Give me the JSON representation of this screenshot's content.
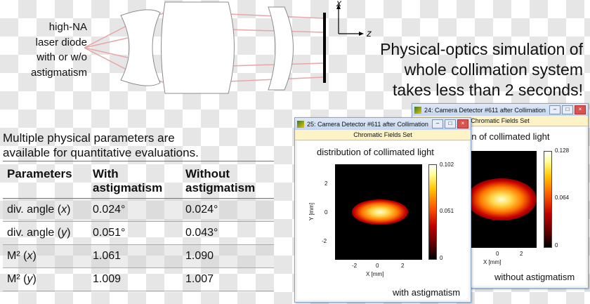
{
  "diode_label": {
    "lines": [
      "high-NA",
      "laser diode",
      "with or w/o",
      "astigmatism"
    ]
  },
  "axes": {
    "x_label": "x",
    "z_label": "z"
  },
  "headline": {
    "lines": [
      "Physical-optics simulation of",
      "whole collimation system",
      "takes less than 2 seconds!"
    ]
  },
  "intro": {
    "lines": [
      "Multiple physical parameters are",
      "available for quantitative evaluations."
    ]
  },
  "table": {
    "headers": [
      "Parameters",
      "With astigmatism",
      "Without astigmatism"
    ],
    "header_lines": [
      [
        "Parameters"
      ],
      [
        "With",
        "astigmatism"
      ],
      [
        "Without",
        "astigmatism"
      ]
    ],
    "rows": [
      {
        "param": "div. angle",
        "var": "x",
        "with": "0.024°",
        "without": "0.024°"
      },
      {
        "param": "div. angle",
        "var": "y",
        "with": "0.051°",
        "without": "0.043°"
      },
      {
        "param": "M²",
        "var": "x",
        "with": "1.061",
        "without": "1.090"
      },
      {
        "param": "M²",
        "var": "y",
        "with": "1.009",
        "without": "1.007"
      }
    ]
  },
  "windows": {
    "front": {
      "title": "25: Camera Detector #611 after Collimation Le...",
      "subtitle": "Chromatic Fields Set",
      "plot_title": "distribution of collimated light",
      "caption": "with astigmatism",
      "colorbar": [
        "0.102",
        "0.051",
        "0"
      ],
      "y_axis_label": "Y [mm]",
      "x_axis_label": "X [mm]",
      "y_ticks": [
        "2",
        "0",
        "-2"
      ],
      "x_ticks": [
        "-2",
        "0",
        "2"
      ]
    },
    "back": {
      "title": "24: Camera Detector #611 after Collimation Le...",
      "subtitle": "Chromatic Fields Set",
      "plot_title": "on of collimated light",
      "caption": "without astigmatism",
      "colorbar": [
        "0.128",
        "0.064",
        "0"
      ],
      "x_axis_label": "X [mm]",
      "x_ticks": [
        "0",
        "2"
      ]
    }
  },
  "window_buttons": {
    "minimize": "–",
    "maximize": "□",
    "close": "×"
  },
  "colors": {
    "ray": "#e8a6a6",
    "lens_stroke": "#8c8c8c",
    "detector": "#000000"
  }
}
